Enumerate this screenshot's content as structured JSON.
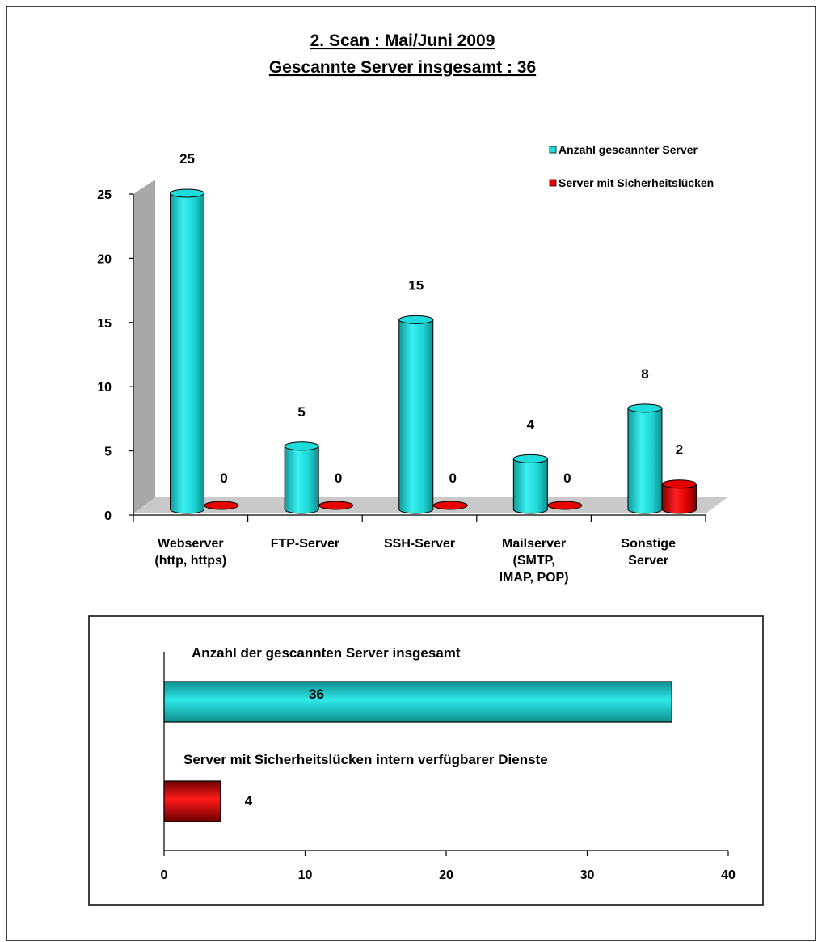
{
  "title_line1": "2. Scan : Mai/Juni 2009",
  "title_line2": "Gescannte  Server insgesamt : 36",
  "colors": {
    "cyan": "#1FDCDC",
    "cyan_dark": "#0E8E8E",
    "red": "#E60000",
    "red_dark": "#7A0000",
    "wall_gray": "#A8A8A8",
    "floor_gray": "#C9C9C9"
  },
  "chart_data": [
    {
      "type": "bar",
      "style": "3d-cylinder",
      "categories": [
        [
          "Webserver",
          "(http, https)"
        ],
        [
          "FTP-Server"
        ],
        [
          "SSH-Server"
        ],
        [
          "Mailserver",
          "(SMTP,",
          "IMAP, POP)"
        ],
        [
          "Sonstige",
          "Server"
        ]
      ],
      "series": [
        {
          "name": "Anzahl gescannter Server",
          "values": [
            25,
            5,
            15,
            4,
            8
          ],
          "color": "#1FDCDC"
        },
        {
          "name": "Server mit Sicherheitslücken",
          "values": [
            0,
            0,
            0,
            0,
            2
          ],
          "color": "#E60000"
        }
      ],
      "yticks": [
        "0",
        "5",
        "10",
        "15",
        "20",
        "25"
      ],
      "ylim": [
        0,
        25
      ],
      "legend_position": "top-right",
      "grid": false
    },
    {
      "type": "bar",
      "orientation": "horizontal",
      "bars": [
        {
          "label": "Anzahl der gescannten Server insgesamt",
          "value": 36,
          "value_label": "36",
          "color": "#1FDCDC"
        },
        {
          "label": "Server mit Sicherheitslücken intern verfügbarer Dienste",
          "value": 4,
          "value_label": "4",
          "color": "#E60000"
        }
      ],
      "xticks": [
        "0",
        "10",
        "20",
        "30",
        "40"
      ],
      "xlim": [
        0,
        40
      ],
      "grid": false
    }
  ]
}
